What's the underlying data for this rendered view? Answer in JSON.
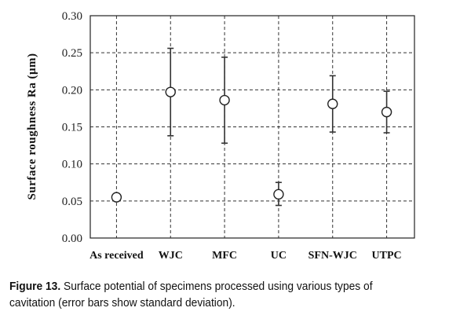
{
  "chart_data": {
    "type": "scatter",
    "ylabel": "Surface roughness Ra (μm)",
    "xlabel": "",
    "ylim": [
      0,
      0.3
    ],
    "yticks": [
      "0.00",
      "0.05",
      "0.10",
      "0.15",
      "0.20",
      "0.25",
      "0.30"
    ],
    "grid": true,
    "categories": [
      "As received",
      "WJC",
      "MFC",
      "UC",
      "SFN-WJC",
      "UTPC"
    ],
    "values": [
      0.055,
      0.197,
      0.186,
      0.059,
      0.181,
      0.17
    ],
    "error_low": [
      0.055,
      0.138,
      0.128,
      0.044,
      0.143,
      0.142
    ],
    "error_high": [
      0.055,
      0.256,
      0.244,
      0.075,
      0.219,
      0.198
    ]
  },
  "caption": {
    "lead": "Figure 13.",
    "text": " Surface potential of specimens processed using various types of cavitation (error bars show standard deviation)."
  }
}
